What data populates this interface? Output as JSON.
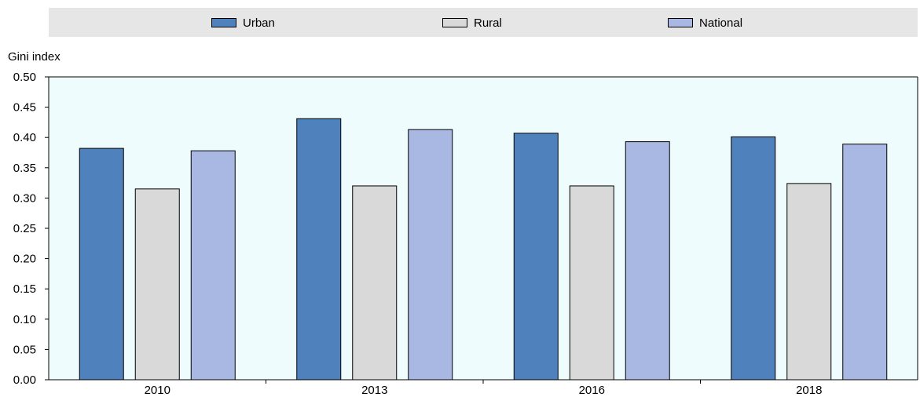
{
  "legend": {
    "items": [
      {
        "label": "Urban",
        "color": "#4f81bd"
      },
      {
        "label": "Rural",
        "color": "#d9d9d9"
      },
      {
        "label": "National",
        "color": "#a9b8e3"
      }
    ]
  },
  "chart_data": {
    "type": "bar",
    "title": "",
    "xlabel": "",
    "ylabel": "Gini index",
    "categories": [
      "2010",
      "2013",
      "2016",
      "2018"
    ],
    "series": [
      {
        "name": "Urban",
        "color": "#4f81bd",
        "values": [
          0.382,
          0.431,
          0.407,
          0.401
        ]
      },
      {
        "name": "Rural",
        "color": "#d9d9d9",
        "values": [
          0.315,
          0.32,
          0.32,
          0.324
        ]
      },
      {
        "name": "National",
        "color": "#a9b8e3",
        "values": [
          0.378,
          0.413,
          0.393,
          0.389
        ]
      }
    ],
    "ylim": [
      0,
      0.5
    ],
    "yticks": [
      "0.00",
      "0.05",
      "0.10",
      "0.15",
      "0.20",
      "0.25",
      "0.30",
      "0.35",
      "0.40",
      "0.45",
      "0.50"
    ],
    "plot_background": "#eefcfd",
    "legend_position": "top",
    "grid": false
  }
}
